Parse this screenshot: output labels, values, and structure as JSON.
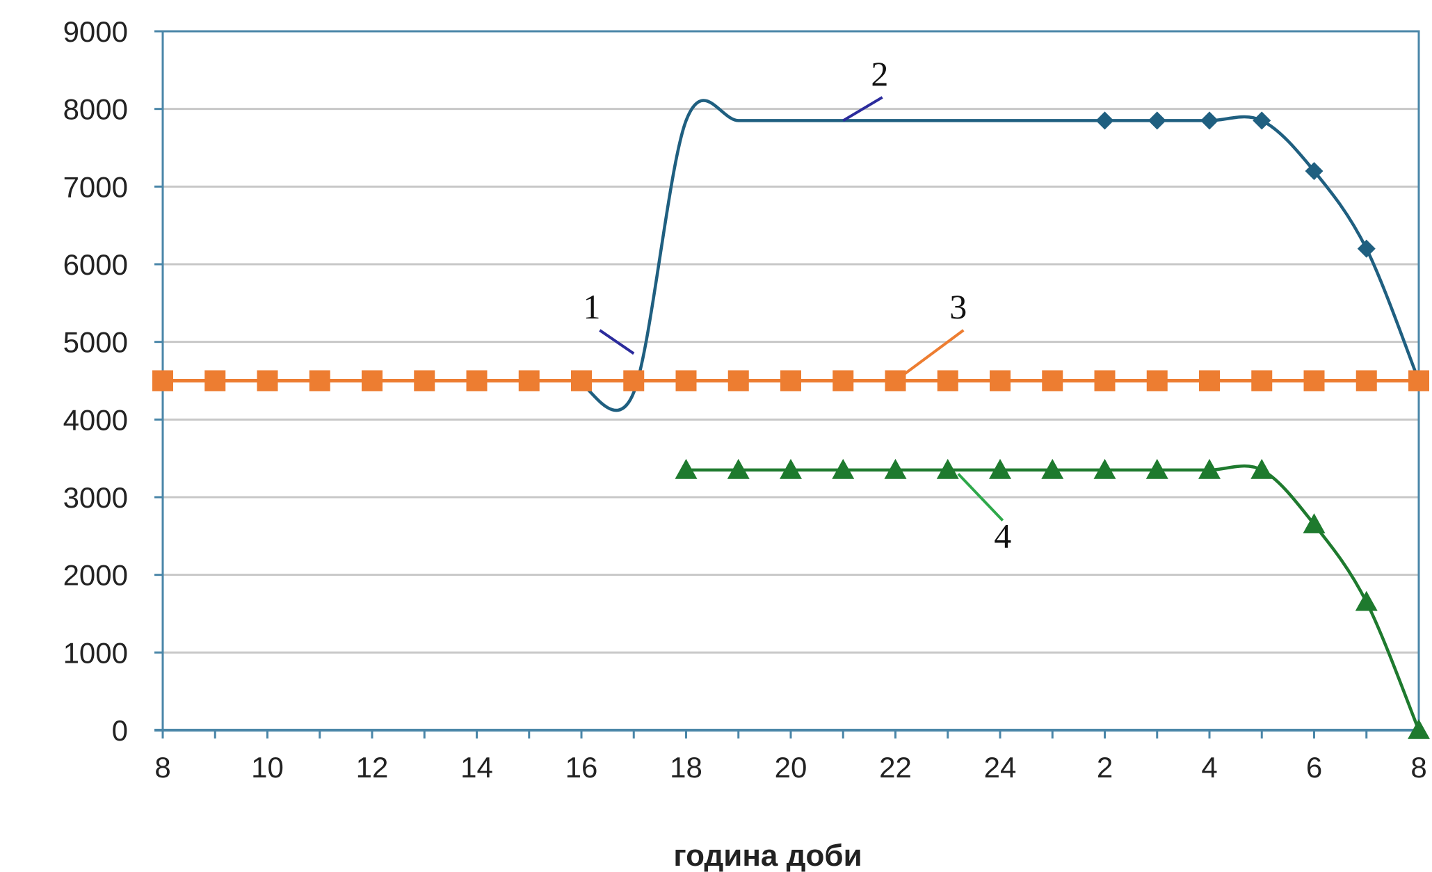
{
  "chart_data": {
    "type": "line",
    "title": "",
    "xlabel": "година доби",
    "ylabel": "",
    "ylim": [
      0,
      9000
    ],
    "yticks": [
      0,
      1000,
      2000,
      3000,
      4000,
      5000,
      6000,
      7000,
      8000,
      9000
    ],
    "x_tick_labels": [
      "8",
      "10",
      "12",
      "14",
      "16",
      "18",
      "20",
      "22",
      "24",
      "2",
      "4",
      "6",
      "8"
    ],
    "x_hours": [
      "8",
      "9",
      "10",
      "11",
      "12",
      "13",
      "14",
      "15",
      "16",
      "17",
      "18",
      "19",
      "20",
      "21",
      "22",
      "23",
      "24",
      "1",
      "2",
      "3",
      "4",
      "5",
      "6",
      "7",
      "8"
    ],
    "grid": true,
    "legend": "none",
    "colors": {
      "series_1": "#1f5f80",
      "series_2": "#1f5f80",
      "series_3": "#ed7d31",
      "series_4": "#1e7a2e",
      "callout_1": "#2b2b9c",
      "callout_2": "#2b2b9c",
      "callout_3": "#ed7d31",
      "callout_4": "#2ea84a",
      "axis": "#4a86a8"
    },
    "series": [
      {
        "id": "2",
        "marker": "diamond",
        "markers_from": 10,
        "points": [
          [
            8,
            4450
          ],
          [
            9,
            4350
          ],
          [
            10,
            7850
          ],
          [
            11,
            7850
          ],
          [
            12,
            7850
          ],
          [
            13,
            7850
          ],
          [
            14,
            7850
          ],
          [
            15,
            7850
          ],
          [
            16,
            7850
          ],
          [
            17,
            7850
          ],
          [
            18,
            7850
          ],
          [
            19,
            7850
          ],
          [
            20,
            7850
          ],
          [
            21,
            7850
          ],
          [
            22,
            7200
          ],
          [
            23,
            6200
          ],
          [
            24,
            4500
          ]
        ]
      },
      {
        "id": "3",
        "marker": "square",
        "markers_from": 0,
        "points": [
          [
            0,
            4500
          ],
          [
            1,
            4500
          ],
          [
            2,
            4500
          ],
          [
            3,
            4500
          ],
          [
            4,
            4500
          ],
          [
            5,
            4500
          ],
          [
            6,
            4500
          ],
          [
            7,
            4500
          ],
          [
            8,
            4500
          ],
          [
            9,
            4500
          ],
          [
            10,
            4500
          ],
          [
            11,
            4500
          ],
          [
            12,
            4500
          ],
          [
            13,
            4500
          ],
          [
            14,
            4500
          ],
          [
            15,
            4500
          ],
          [
            16,
            4500
          ],
          [
            17,
            4500
          ],
          [
            18,
            4500
          ],
          [
            19,
            4500
          ],
          [
            20,
            4500
          ],
          [
            21,
            4500
          ],
          [
            22,
            4500
          ],
          [
            23,
            4500
          ],
          [
            24,
            4500
          ]
        ]
      },
      {
        "id": "4",
        "marker": "triangle",
        "markers_from": 0,
        "points": [
          [
            10,
            3350
          ],
          [
            11,
            3350
          ],
          [
            12,
            3350
          ],
          [
            13,
            3350
          ],
          [
            14,
            3350
          ],
          [
            15,
            3350
          ],
          [
            16,
            3350
          ],
          [
            17,
            3350
          ],
          [
            18,
            3350
          ],
          [
            19,
            3350
          ],
          [
            20,
            3350
          ],
          [
            21,
            3350
          ],
          [
            22,
            2650
          ],
          [
            23,
            1650
          ],
          [
            24,
            0
          ]
        ]
      }
    ],
    "callouts": [
      {
        "label": "1",
        "text_at": [
          8.2,
          5300
        ],
        "line_from": [
          8.35,
          5150
        ],
        "line_to": [
          9.0,
          4850
        ],
        "color_key": "callout_1"
      },
      {
        "label": "2",
        "text_at": [
          13.7,
          8300
        ],
        "line_from": [
          13.75,
          8150
        ],
        "line_to": [
          13.0,
          7850
        ],
        "color_key": "callout_2"
      },
      {
        "label": "3",
        "text_at": [
          15.2,
          5300
        ],
        "line_from": [
          15.3,
          5150
        ],
        "line_to": [
          14.0,
          4500
        ],
        "color_key": "callout_3"
      },
      {
        "label": "4",
        "text_at": [
          16.05,
          2350
        ],
        "line_from": [
          16.05,
          2700
        ],
        "line_to": [
          15.2,
          3300
        ],
        "color_key": "callout_4"
      }
    ]
  }
}
